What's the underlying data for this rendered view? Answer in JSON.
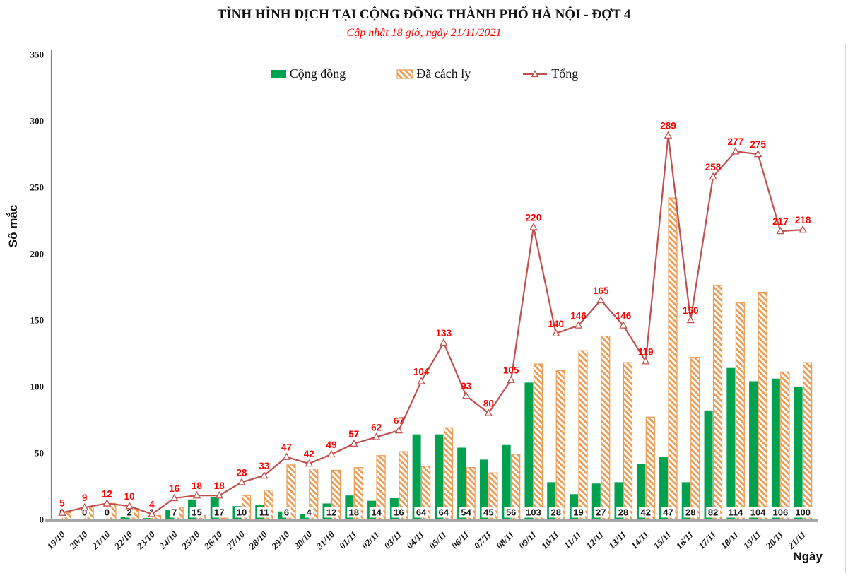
{
  "chart_data": {
    "type": "combo-bar-line",
    "title": "TÌNH HÌNH DỊCH TẠI CỘNG ĐỒNG THÀNH PHỐ HÀ NỘI - ĐỢT 4",
    "subtitle": "Cập nhật 18 giờ, ngày 21/11/2021",
    "xlabel": "Ngày",
    "ylabel": "Số mắc",
    "ylim": [
      0,
      350
    ],
    "ytick_step": 50,
    "grid": false,
    "legend_position": "top",
    "categories": [
      "19/10",
      "20/10",
      "21/10",
      "22/10",
      "23/10",
      "24/10",
      "25/10",
      "26/10",
      "27/10",
      "28/10",
      "29/10",
      "30/10",
      "31/10",
      "01/11",
      "02/11",
      "03/11",
      "04/11",
      "05/11",
      "06/11",
      "07/11",
      "08/11",
      "09/11",
      "10/11",
      "11/11",
      "12/11",
      "13/11",
      "14/11",
      "15/11",
      "16/11",
      "17/11",
      "18/11",
      "19/11",
      "20/11",
      "21/11"
    ],
    "series": [
      {
        "name": "Cộng đồng",
        "type": "bar",
        "style": "solid",
        "color": "#00A14F",
        "values": [
          0,
          0,
          0,
          2,
          1,
          7,
          15,
          17,
          10,
          11,
          6,
          4,
          12,
          18,
          14,
          16,
          64,
          64,
          54,
          45,
          56,
          103,
          28,
          19,
          27,
          28,
          42,
          47,
          28,
          82,
          114,
          104,
          106,
          100
        ],
        "labels_shown": true
      },
      {
        "name": "Đã cách ly",
        "type": "bar",
        "style": "hatched",
        "color": "#ED9B53",
        "values": [
          5,
          9,
          12,
          8,
          3,
          9,
          3,
          1,
          18,
          22,
          41,
          38,
          37,
          39,
          48,
          51,
          40,
          69,
          39,
          35,
          49,
          117,
          112,
          127,
          138,
          118,
          77,
          242,
          122,
          176,
          163,
          171,
          111,
          118
        ],
        "labels_shown": false
      },
      {
        "name": "Tổng",
        "type": "line",
        "color": "#C0504D",
        "label_color": "#FF0000",
        "marker": "open-triangle",
        "values": [
          5,
          9,
          12,
          10,
          4,
          16,
          18,
          18,
          28,
          33,
          47,
          42,
          49,
          57,
          62,
          67,
          104,
          133,
          93,
          80,
          105,
          220,
          140,
          146,
          165,
          146,
          119,
          289,
          150,
          258,
          277,
          275,
          217,
          218
        ],
        "labels_shown": true
      }
    ],
    "colors": {
      "title": "#111111",
      "subtitle": "#FF0000",
      "axis_left": "#808080",
      "axis_bottom": "#A6A6A6",
      "bar_label_text": "#1A1A1A",
      "bar_label_bg": "#FFFFFF"
    }
  }
}
